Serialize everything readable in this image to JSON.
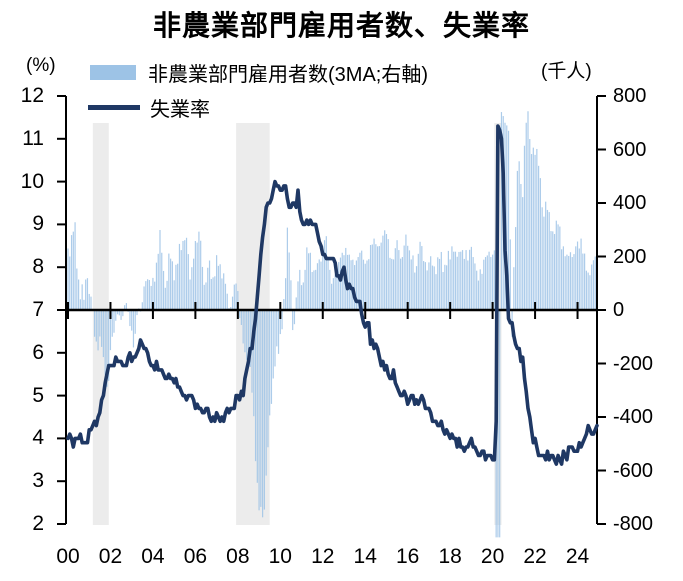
{
  "title": "非農業部門雇用者数、失業率",
  "axis_units": {
    "left": "(%)",
    "right": "(千人)"
  },
  "legend": [
    {
      "label": "非農業部門雇用者数(3MA;右軸)",
      "color": "#9DC3E6",
      "type": "bar"
    },
    {
      "label": "失業率",
      "color": "#1F3864",
      "type": "line"
    }
  ],
  "chart_data": {
    "type": "combo",
    "title": "非農業部門雇用者数、失業率",
    "x": {
      "freq": "monthly",
      "start": "2000-01",
      "end": "2024-12",
      "tick_labels": [
        "00",
        "02",
        "04",
        "06",
        "08",
        "10",
        "12",
        "14",
        "16",
        "18",
        "20",
        "22",
        "24"
      ]
    },
    "y_left": {
      "unit": "%",
      "min": 2,
      "max": 12,
      "tick_labels": [
        12,
        11,
        10,
        9,
        8,
        7,
        6,
        5,
        4,
        3,
        2
      ]
    },
    "y_right": {
      "unit": "千人",
      "min": -800,
      "max": 800,
      "tick_labels": [
        800,
        600,
        400,
        200,
        0,
        -200,
        -400,
        -600,
        -800
      ]
    },
    "recession_bands": [
      {
        "from": 2001.17,
        "to": 2001.92
      },
      {
        "from": 2007.92,
        "to": 2009.5
      },
      {
        "from": 2020.08,
        "to": 2020.42
      }
    ],
    "band_color": "#ECECEC",
    "series": [
      {
        "name": "非農業部門雇用者数(3MA;右軸)",
        "type": "bar",
        "axis": "right",
        "color": "#9DC3E6",
        "values": [
          230,
          200,
          280,
          293,
          328,
          155,
          114,
          40,
          96,
          38,
          114,
          119,
          60,
          50,
          0,
          -100,
          -118,
          -151,
          -99,
          -138,
          -176,
          -243,
          -287,
          -265,
          -150,
          -100,
          -85,
          -40,
          -16,
          -20,
          -37,
          -23,
          18,
          26,
          -7,
          -60,
          -77,
          -140,
          -89,
          -19,
          6,
          -6,
          29,
          88,
          108,
          115,
          112,
          90,
          120,
          106,
          177,
          210,
          299,
          214,
          146,
          83,
          109,
          211,
          192,
          182,
          111,
          169,
          173,
          247,
          224,
          258,
          261,
          270,
          209,
          114,
          160,
          192,
          258,
          252,
          293,
          259,
          161,
          94,
          103,
          158,
          185,
          116,
          122,
          126,
          205,
          165,
          171,
          118,
          137,
          98,
          61,
          7,
          11,
          50,
          95,
          99,
          71,
          -30,
          -56,
          -125,
          -158,
          -186,
          -186,
          -213,
          -309,
          -397,
          -565,
          -646,
          -749,
          -736,
          -775,
          -746,
          -619,
          -513,
          -394,
          -351,
          -256,
          -211,
          -136,
          -164,
          -90,
          -72,
          41,
          119,
          308,
          215,
          111,
          -75,
          -53,
          47,
          107,
          150,
          93,
          103,
          150,
          234,
          212,
          214,
          142,
          148,
          150,
          175,
          189,
          181,
          240,
          261,
          276,
          188,
          150,
          98,
          119,
          133,
          157,
          179,
          196,
          214,
          205,
          232,
          206,
          207,
          186,
          188,
          168,
          185,
          198,
          214,
          222,
          188,
          173,
          185,
          190,
          243,
          245,
          267,
          246,
          238,
          239,
          252,
          278,
          298,
          284,
          265,
          195,
          191,
          189,
          231,
          261,
          224,
          192,
          198,
          241,
          282,
          240,
          223,
          189,
          204,
          140,
          164,
          210,
          255,
          239,
          183,
          179,
          148,
          178,
          201,
          166,
          163,
          134,
          197,
          191,
          217,
          142,
          169,
          167,
          221,
          189,
          238,
          218,
          218,
          199,
          217,
          218,
          224,
          191,
          224,
          185,
          225,
          236,
          198,
          174,
          147,
          110,
          152,
          135,
          188,
          198,
          204,
          218,
          198,
          207,
          223,
          -850,
          -850,
          -850,
          740,
          725,
          700,
          690,
          670,
          264,
          -100,
          160,
          310,
          520,
          556,
          471,
          422,
          614,
          700,
          743,
          639,
          583,
          607,
          580,
          602,
          539,
          493,
          384,
          349,
          405,
          374,
          366,
          295,
          294,
          284,
          334,
          320,
          312,
          227,
          238,
          201,
          207,
          202,
          216,
          198,
          209,
          238,
          256,
          230,
          267,
          211,
          211,
          147,
          140,
          130,
          170,
          186,
          200,
          230
        ]
      },
      {
        "name": "失業率",
        "type": "line",
        "axis": "left",
        "color": "#1F3864",
        "values": [
          4.0,
          4.1,
          4.0,
          3.8,
          4.0,
          4.0,
          4.0,
          4.1,
          3.9,
          3.9,
          3.9,
          3.9,
          4.2,
          4.2,
          4.3,
          4.4,
          4.3,
          4.5,
          4.6,
          4.9,
          5.0,
          5.3,
          5.5,
          5.7,
          5.7,
          5.7,
          5.7,
          5.9,
          5.8,
          5.8,
          5.8,
          5.7,
          5.7,
          5.7,
          5.9,
          6.0,
          5.8,
          5.9,
          5.9,
          6.0,
          6.1,
          6.3,
          6.2,
          6.1,
          6.1,
          6.0,
          5.8,
          5.7,
          5.7,
          5.6,
          5.8,
          5.6,
          5.6,
          5.6,
          5.5,
          5.4,
          5.4,
          5.5,
          5.4,
          5.4,
          5.3,
          5.4,
          5.2,
          5.2,
          5.1,
          5.0,
          5.0,
          4.9,
          5.0,
          5.0,
          5.0,
          4.9,
          4.7,
          4.8,
          4.7,
          4.7,
          4.6,
          4.6,
          4.7,
          4.7,
          4.5,
          4.4,
          4.5,
          4.4,
          4.6,
          4.5,
          4.4,
          4.5,
          4.4,
          4.6,
          4.7,
          4.6,
          4.7,
          4.7,
          4.7,
          5.0,
          5.0,
          4.9,
          5.1,
          5.0,
          5.4,
          5.6,
          5.8,
          6.1,
          6.1,
          6.5,
          6.8,
          7.3,
          7.8,
          8.3,
          8.7,
          9.0,
          9.4,
          9.5,
          9.5,
          9.6,
          9.8,
          10.0,
          9.9,
          9.9,
          9.8,
          9.8,
          9.9,
          9.9,
          9.6,
          9.4,
          9.4,
          9.5,
          9.5,
          9.4,
          9.8,
          9.3,
          9.1,
          9.0,
          9.0,
          9.1,
          9.0,
          9.1,
          9.0,
          9.0,
          9.0,
          8.8,
          8.6,
          8.5,
          8.3,
          8.3,
          8.2,
          8.2,
          8.2,
          8.2,
          8.2,
          8.1,
          7.8,
          7.8,
          7.7,
          7.9,
          8.0,
          7.7,
          7.5,
          7.6,
          7.5,
          7.5,
          7.3,
          7.2,
          7.2,
          7.2,
          6.9,
          6.7,
          6.6,
          6.7,
          6.7,
          6.2,
          6.3,
          6.1,
          6.2,
          6.1,
          5.9,
          5.7,
          5.8,
          5.6,
          5.7,
          5.5,
          5.4,
          5.4,
          5.6,
          5.3,
          5.2,
          5.1,
          5.0,
          5.0,
          5.1,
          5.0,
          4.8,
          4.9,
          5.0,
          5.0,
          4.8,
          4.9,
          4.8,
          4.9,
          5.0,
          4.9,
          4.7,
          4.7,
          4.7,
          4.6,
          4.4,
          4.4,
          4.4,
          4.3,
          4.3,
          4.4,
          4.2,
          4.1,
          4.2,
          4.1,
          4.0,
          4.1,
          4.0,
          4.0,
          3.8,
          4.0,
          3.8,
          3.8,
          3.7,
          3.8,
          3.8,
          3.9,
          4.0,
          3.8,
          3.8,
          3.7,
          3.6,
          3.6,
          3.7,
          3.7,
          3.5,
          3.6,
          3.6,
          3.6,
          3.5,
          3.5,
          4.4,
          11.3,
          11.2,
          11.0,
          10.2,
          8.4,
          7.8,
          6.8,
          6.7,
          6.7,
          6.4,
          6.2,
          6.1,
          6.1,
          5.8,
          5.9,
          5.4,
          5.1,
          4.7,
          4.5,
          4.2,
          3.9,
          4.0,
          3.8,
          3.6,
          3.6,
          3.6,
          3.6,
          3.5,
          3.7,
          3.5,
          3.6,
          3.6,
          3.5,
          3.4,
          3.6,
          3.5,
          3.4,
          3.7,
          3.6,
          3.5,
          3.8,
          3.8,
          3.8,
          3.7,
          3.7,
          3.7,
          3.9,
          3.8,
          3.9,
          4.0,
          4.1,
          4.3,
          4.2,
          4.1,
          4.1,
          4.2,
          4.3
        ]
      }
    ]
  }
}
